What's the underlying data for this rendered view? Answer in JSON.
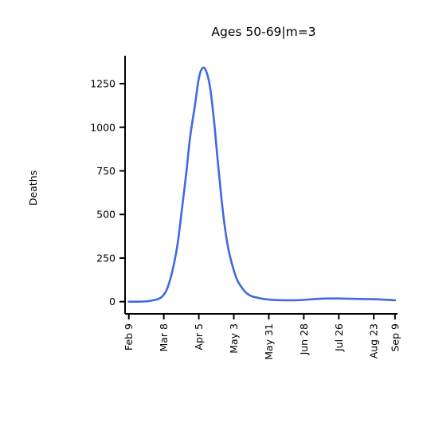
{
  "chart_data": {
    "type": "line",
    "title": "Ages 50-69|m=3",
    "xlabel": "",
    "ylabel": "Deaths",
    "x_tick_labels": [
      "Feb 9",
      "Mar 8",
      "Apr 5",
      "May 3",
      "May 31",
      "Jun 28",
      "Jul 26",
      "Aug 23",
      "Sep 9"
    ],
    "x_tick_dates": [
      "2020-02-09",
      "2020-03-08",
      "2020-04-05",
      "2020-05-03",
      "2020-05-31",
      "2020-06-28",
      "2020-07-26",
      "2020-08-23",
      "2020-09-09"
    ],
    "y_ticks": [
      0,
      250,
      500,
      750,
      1000,
      1250
    ],
    "y_tick_labels": [
      "0",
      "250",
      "500",
      "750",
      "1000",
      "1250"
    ],
    "ylim": [
      -70,
      1410
    ],
    "xlim": [
      "2020-02-06",
      "2020-09-11"
    ],
    "grid": false,
    "legend": "none",
    "series": [
      {
        "color": "#4169e1",
        "x": [
          "2020-02-09",
          "2020-02-16",
          "2020-02-23",
          "2020-03-01",
          "2020-03-05",
          "2020-03-08",
          "2020-03-11",
          "2020-03-15",
          "2020-03-19",
          "2020-03-22",
          "2020-03-26",
          "2020-03-29",
          "2020-04-02",
          "2020-04-05",
          "2020-04-08",
          "2020-04-11",
          "2020-04-14",
          "2020-04-17",
          "2020-04-20",
          "2020-04-23",
          "2020-04-26",
          "2020-04-29",
          "2020-05-03",
          "2020-05-06",
          "2020-05-10",
          "2020-05-13",
          "2020-05-17",
          "2020-05-21",
          "2020-05-25",
          "2020-05-31",
          "2020-06-07",
          "2020-06-14",
          "2020-06-21",
          "2020-06-28",
          "2020-07-05",
          "2020-07-12",
          "2020-07-19",
          "2020-07-26",
          "2020-08-02",
          "2020-08-09",
          "2020-08-16",
          "2020-08-23",
          "2020-08-30",
          "2020-09-09"
        ],
        "y": [
          0,
          0,
          2,
          10,
          20,
          40,
          80,
          180,
          330,
          500,
          740,
          940,
          1130,
          1280,
          1340,
          1320,
          1230,
          1050,
          820,
          600,
          420,
          290,
          180,
          120,
          75,
          50,
          32,
          24,
          18,
          12,
          9,
          8,
          8,
          10,
          14,
          17,
          18,
          18,
          17,
          16,
          15,
          14,
          12,
          8
        ]
      }
    ]
  }
}
